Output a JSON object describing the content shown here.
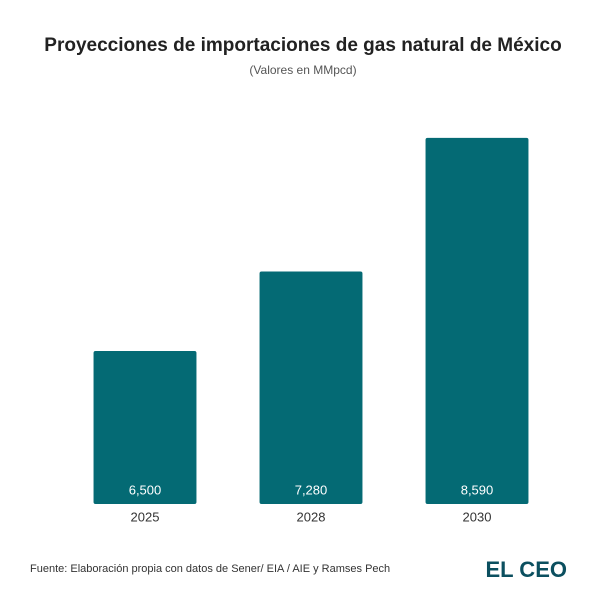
{
  "chart_data": {
    "type": "bar",
    "title": "Proyecciones de importaciones de gas natural de México",
    "subtitle": "(Valores en MMpcd)",
    "categories": [
      "2025",
      "2028",
      "2030"
    ],
    "values": [
      6500,
      7280,
      8590
    ],
    "value_labels": [
      "6,500",
      "7,280",
      "8,590"
    ],
    "color": "#046a74",
    "ylim": [
      5000,
      9000
    ],
    "source": "Fuente: Elaboración propia con datos de Sener/ EIA / AIE y Ramses Pech",
    "logo": "EL CEO"
  }
}
